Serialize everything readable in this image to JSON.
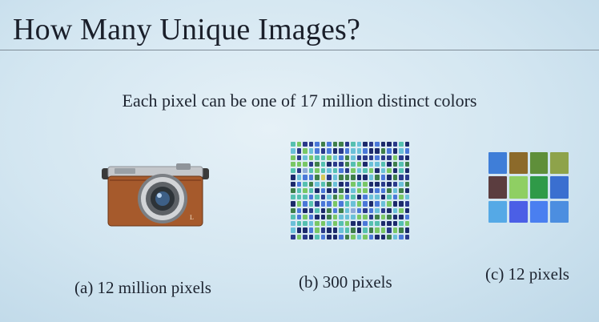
{
  "slide": {
    "title": "How Many Unique Images?",
    "subtitle": "Each pixel can be one of 17 million distinct colors"
  },
  "panels": [
    {
      "id": "a",
      "caption": "(a) 12 million pixels",
      "icon": "camera-icon"
    },
    {
      "id": "b",
      "caption": "(b) 300 pixels",
      "grid": {
        "cols": 20,
        "rows": 15
      }
    },
    {
      "id": "c",
      "caption": "(c) 12 pixels",
      "grid": {
        "cols": 4,
        "rows": 3
      }
    }
  ],
  "camera": {
    "brand": "LUMIX",
    "body_color": "#a85a2c",
    "top_color": "#b9bcc0"
  },
  "pixel_grid_12": {
    "colors": [
      "#3f7ed8",
      "#8c6a2a",
      "#5f8f3a",
      "#8ea34a",
      "#5b3d3f",
      "#8fcf63",
      "#2f9a48",
      "#3a6fd0",
      "#55a9e6",
      "#4b5fe6",
      "#4a7ff0",
      "#4c8ee0"
    ]
  },
  "pixel_grid_300": {
    "palette": [
      "#1c2a6b",
      "#2e4bb8",
      "#4a78d8",
      "#5fa7e2",
      "#6ac0d8",
      "#44b38f",
      "#79c765",
      "#a9d36a",
      "#3f7f4a",
      "#6a6ae0",
      "#2a3a8a",
      "#8eaad8",
      "#55c0b0",
      "#d6c95a"
    ]
  }
}
